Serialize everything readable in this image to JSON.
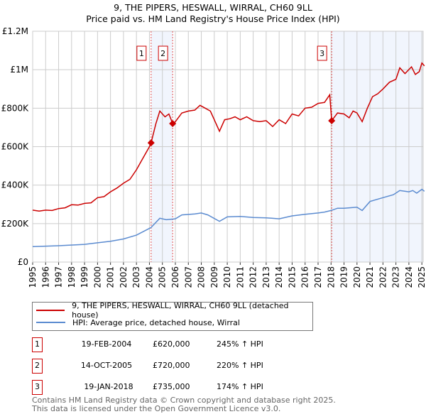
{
  "chart_data": {
    "type": "line",
    "title": "9, THE PIPERS, HESWALL, WIRRAL, CH60 9LL",
    "subtitle": "Price paid vs. HM Land Registry's House Price Index (HPI)",
    "xlim": [
      1995,
      2025.2
    ],
    "ylim": [
      0,
      1200000
    ],
    "x_ticks": [
      "1995",
      "1996",
      "1997",
      "1998",
      "1999",
      "2000",
      "2001",
      "2002",
      "2003",
      "2004",
      "2005",
      "2006",
      "2007",
      "2008",
      "2009",
      "2010",
      "2011",
      "2012",
      "2013",
      "2014",
      "2015",
      "2016",
      "2017",
      "2018",
      "2019",
      "2020",
      "2021",
      "2022",
      "2023",
      "2024",
      "2025"
    ],
    "y_ticks": [
      {
        "v": 0,
        "label": "£0"
      },
      {
        "v": 200000,
        "label": "£200K"
      },
      {
        "v": 400000,
        "label": "£400K"
      },
      {
        "v": 600000,
        "label": "£600K"
      },
      {
        "v": 800000,
        "label": "£800K"
      },
      {
        "v": 1000000,
        "label": "£1M"
      },
      {
        "v": 1200000,
        "label": "£1.2M"
      }
    ],
    "grid": true,
    "series": [
      {
        "name": "9, THE PIPERS, HESWALL, WIRRAL, CH60 9LL (detached house)",
        "color": "#cc0000",
        "x": [
          1995,
          1995.5,
          1996,
          1996.5,
          1997,
          1997.5,
          1998,
          1998.5,
          1999,
          1999.5,
          2000,
          2000.5,
          2001,
          2001.5,
          2002,
          2002.5,
          2003,
          2003.5,
          2004,
          2004.13,
          2004.5,
          2004.8,
          2005.2,
          2005.5,
          2005.79,
          2006,
          2006.5,
          2007,
          2007.5,
          2007.9,
          2008.3,
          2008.7,
          2009,
          2009.4,
          2009.8,
          2010.2,
          2010.6,
          2011,
          2011.5,
          2012,
          2012.5,
          2013,
          2013.5,
          2014,
          2014.5,
          2015,
          2015.5,
          2016,
          2016.5,
          2017,
          2017.5,
          2017.9,
          2018.05,
          2018.5,
          2019,
          2019.4,
          2019.7,
          2020,
          2020.4,
          2020.8,
          2021.2,
          2021.6,
          2022,
          2022.5,
          2023,
          2023.3,
          2023.7,
          2024.2,
          2024.5,
          2024.8,
          2025,
          2025.2
        ],
        "y": [
          270000,
          265000,
          270000,
          268000,
          278000,
          282000,
          298000,
          296000,
          305000,
          308000,
          335000,
          340000,
          365000,
          385000,
          410000,
          430000,
          480000,
          540000,
          600000,
          620000,
          720000,
          785000,
          755000,
          770000,
          720000,
          730000,
          775000,
          785000,
          790000,
          815000,
          800000,
          785000,
          740000,
          680000,
          740000,
          745000,
          755000,
          740000,
          755000,
          735000,
          730000,
          735000,
          705000,
          740000,
          720000,
          770000,
          760000,
          800000,
          805000,
          825000,
          830000,
          870000,
          735000,
          775000,
          770000,
          750000,
          785000,
          775000,
          730000,
          800000,
          860000,
          875000,
          900000,
          935000,
          950000,
          1010000,
          980000,
          1015000,
          975000,
          990000,
          1035000,
          1020000
        ]
      },
      {
        "name": "HPI: Average price, detached house, Wirral",
        "color": "#5b8bd0",
        "x": [
          1995,
          1997,
          1999,
          2000,
          2001,
          2002,
          2003,
          2004,
          2004.13,
          2004.8,
          2005.3,
          2006,
          2006.5,
          2007.5,
          2008,
          2008.5,
          2009.4,
          2010,
          2011,
          2012,
          2013,
          2014,
          2015,
          2016,
          2017,
          2017.5,
          2018,
          2018.5,
          2019,
          2020,
          2020.4,
          2021,
          2022,
          2022.8,
          2023.3,
          2024,
          2024.3,
          2024.6,
          2025,
          2025.2
        ],
        "y": [
          80000,
          85000,
          92000,
          100000,
          108000,
          120000,
          140000,
          175000,
          180000,
          228000,
          220000,
          225000,
          245000,
          250000,
          255000,
          245000,
          212000,
          235000,
          237000,
          232000,
          230000,
          225000,
          240000,
          248000,
          255000,
          260000,
          268000,
          280000,
          280000,
          285000,
          268000,
          315000,
          335000,
          350000,
          372000,
          365000,
          372000,
          358000,
          378000,
          368000
        ]
      }
    ],
    "sales": [
      {
        "n": "1",
        "x": 2004.13,
        "y": 620000,
        "date": "19-FEB-2004",
        "price": "£620,000",
        "hpi": "245% ↑ HPI"
      },
      {
        "n": "2",
        "x": 2005.79,
        "y": 720000,
        "date": "14-OCT-2005",
        "price": "£720,000",
        "hpi": "220% ↑ HPI"
      },
      {
        "n": "3",
        "x": 2018.05,
        "y": 735000,
        "date": "19-JAN-2018",
        "price": "£735,000",
        "hpi": "174% ↑ HPI"
      }
    ],
    "shaded_ranges": [
      [
        2004.13,
        2005.79
      ],
      [
        2018.05,
        2025.2
      ]
    ],
    "legend_placement": "below"
  },
  "footer": {
    "line1": "Contains HM Land Registry data © Crown copyright and database right 2025.",
    "line2": "This data is licensed under the Open Government Licence v3.0."
  }
}
